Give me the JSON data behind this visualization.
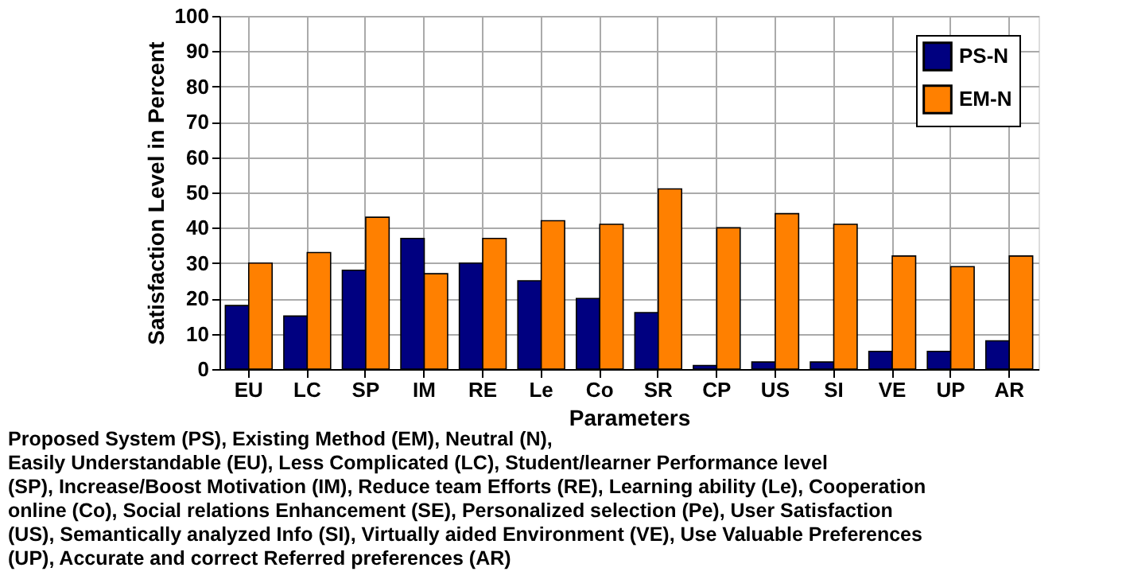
{
  "chart_data": {
    "type": "bar",
    "xlabel": "Parameters",
    "ylabel": "Satisfaction Level in Percent",
    "categories": [
      "EU",
      "LC",
      "SP",
      "IM",
      "RE",
      "Le",
      "Co",
      "SR",
      "CP",
      "US",
      "SI",
      "VE",
      "UP",
      "AR"
    ],
    "series": [
      {
        "name": "PS-N",
        "color": "#000080",
        "values": [
          18,
          15,
          28,
          37,
          30,
          25,
          20,
          16,
          1,
          2,
          2,
          5,
          5,
          8
        ]
      },
      {
        "name": "EM-N",
        "color": "#ff8000",
        "values": [
          30,
          33,
          43,
          27,
          37,
          42,
          41,
          51,
          40,
          44,
          41,
          32,
          29,
          32
        ]
      }
    ],
    "ylim": [
      0,
      100
    ],
    "yticks": [
      0,
      10,
      20,
      30,
      40,
      50,
      60,
      70,
      80,
      90,
      100
    ],
    "grid": true,
    "legend": "top right",
    "annotations": [
      "Proposed System (PS), Existing Method (EM), Neutral (N),",
      "Easily Understandable (EU), Less Complicated (LC), Student/learner Performance level",
      "(SP), Increase/Boost Motivation (IM), Reduce team Efforts (RE), Learning ability (Le), Cooperation",
      "online (Co), Social relations Enhancement (SE), Personalized selection (Pe), User Satisfaction",
      "(US), Semantically analyzed Info (SI), Virtually aided Environment (VE), Use Valuable Preferences",
      "(UP), Accurate and correct Referred preferences (AR)"
    ]
  }
}
